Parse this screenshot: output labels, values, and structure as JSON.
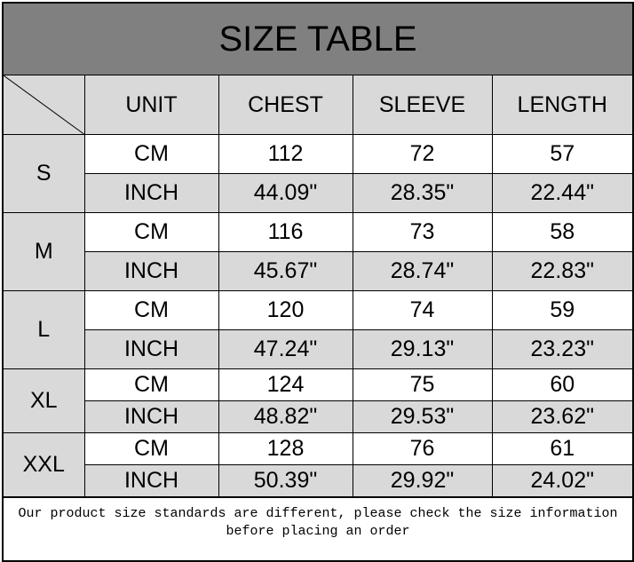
{
  "title": "SIZE TABLE",
  "headers": [
    "UNIT",
    "CHEST",
    "SLEEVE",
    "LENGTH"
  ],
  "rows": [
    {
      "size": "S",
      "cm": {
        "unit": "CM",
        "chest": "112",
        "sleeve": "72",
        "length": "57"
      },
      "inch": {
        "unit": "INCH",
        "chest": "44.09\"",
        "sleeve": "28.35\"",
        "length": "22.44\""
      }
    },
    {
      "size": "M",
      "cm": {
        "unit": "CM",
        "chest": "116",
        "sleeve": "73",
        "length": "58"
      },
      "inch": {
        "unit": "INCH",
        "chest": "45.67\"",
        "sleeve": "28.74\"",
        "length": "22.83\""
      }
    },
    {
      "size": "L",
      "cm": {
        "unit": "CM",
        "chest": "120",
        "sleeve": "74",
        "length": "59"
      },
      "inch": {
        "unit": "INCH",
        "chest": "47.24\"",
        "sleeve": "29.13\"",
        "length": "23.23\""
      }
    },
    {
      "size": "XL",
      "cm": {
        "unit": "CM",
        "chest": "124",
        "sleeve": "75",
        "length": "60"
      },
      "inch": {
        "unit": "INCH",
        "chest": "48.82\"",
        "sleeve": "29.53\"",
        "length": "23.62\""
      }
    },
    {
      "size": "XXL",
      "cm": {
        "unit": "CM",
        "chest": "128",
        "sleeve": "76",
        "length": "61"
      },
      "inch": {
        "unit": "INCH",
        "chest": "50.39\"",
        "sleeve": "29.92\"",
        "length": "24.02\""
      }
    }
  ],
  "footer": {
    "line1": "Our product size standards are different, please check the size information",
    "line2": "before placing an order"
  },
  "colors": {
    "title_bg": "#808080",
    "cell_gray": "#d9d9d9"
  }
}
